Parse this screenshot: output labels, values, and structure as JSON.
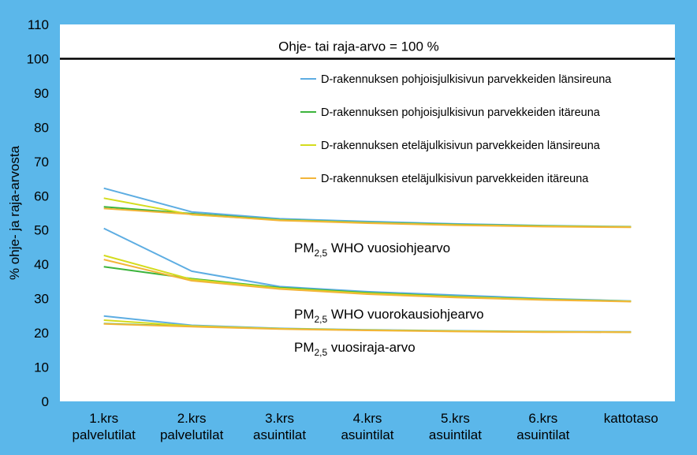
{
  "chart_data": {
    "type": "line",
    "ylabel": "% ohje- ja raja-arvosta",
    "ylim": [
      0,
      110
    ],
    "yticks": [
      0,
      10,
      20,
      30,
      40,
      50,
      60,
      70,
      80,
      90,
      100,
      110
    ],
    "grid": false,
    "categories": [
      [
        "1.krs",
        "palvelutilat"
      ],
      [
        "2.krs",
        "palvelutilat"
      ],
      [
        "3.krs",
        "asuintilat"
      ],
      [
        "4.krs",
        "asuintilat"
      ],
      [
        "5.krs",
        "asuintilat"
      ],
      [
        "6.krs",
        "asuintilat"
      ],
      [
        "kattotaso"
      ]
    ],
    "reference_line": {
      "value": 100,
      "label": "Ohje- tai raja-arvo = 100 %",
      "color": "#000000"
    },
    "legend_position": "top-right",
    "legend": [
      {
        "label": "D-rakennuksen pohjoisjulkisivun parvekkeiden länsireuna",
        "color": "#5DADE2"
      },
      {
        "label": "D-rakennuksen pohjoisjulkisivun parvekkeiden itäreuna",
        "color": "#3CB43C"
      },
      {
        "label": "D-rakennuksen eteläjulkisivun parvekkeiden länsireuna",
        "color": "#D4DC1E"
      },
      {
        "label": "D-rakennuksen eteläjulkisivun parvekkeiden itäreuna",
        "color": "#F2B53A"
      }
    ],
    "groups": [
      {
        "annotation": {
          "main": "PM",
          "sub": "2,5",
          "rest": " WHO vuosiohjearvo"
        },
        "series": [
          {
            "color": "#5DADE2",
            "values": [
              62.2,
              55.3,
              53.3,
              52.5,
              51.8,
              51.3,
              51.0
            ]
          },
          {
            "color": "#3CB43C",
            "values": [
              56.8,
              54.8,
              53.0,
              52.2,
              51.6,
              51.2,
              50.9
            ]
          },
          {
            "color": "#D4DC1E",
            "values": [
              59.3,
              54.5,
              52.9,
              52.1,
              51.5,
              51.1,
              50.9
            ]
          },
          {
            "color": "#F2B53A",
            "values": [
              56.3,
              54.6,
              52.8,
              52.0,
              51.4,
              51.0,
              50.8
            ]
          }
        ]
      },
      {
        "annotation": {
          "main": "PM",
          "sub": "2,5",
          "rest": " WHO vuorokausiohjearvo"
        },
        "series": [
          {
            "color": "#5DADE2",
            "values": [
              50.5,
              38.0,
              33.5,
              32.0,
              31.0,
              30.0,
              29.3
            ]
          },
          {
            "color": "#3CB43C",
            "values": [
              39.3,
              35.8,
              33.2,
              31.7,
              30.6,
              29.8,
              29.2
            ]
          },
          {
            "color": "#D4DC1E",
            "values": [
              42.6,
              35.6,
              33.0,
              31.5,
              30.5,
              29.7,
              29.2
            ]
          },
          {
            "color": "#F2B53A",
            "values": [
              41.4,
              35.2,
              32.8,
              31.3,
              30.3,
              29.6,
              29.1
            ]
          }
        ]
      },
      {
        "annotation": {
          "main": "PM",
          "sub": "2,5",
          "rest": " vuosiraja-arvo"
        },
        "series": [
          {
            "color": "#5DADE2",
            "values": [
              24.9,
              22.2,
              21.3,
              20.9,
              20.6,
              20.4,
              20.3
            ]
          },
          {
            "color": "#3CB43C",
            "values": [
              22.7,
              21.9,
              21.2,
              20.8,
              20.5,
              20.3,
              20.2
            ]
          },
          {
            "color": "#D4DC1E",
            "values": [
              23.7,
              22.0,
              21.2,
              20.8,
              20.5,
              20.3,
              20.2
            ]
          },
          {
            "color": "#F2B53A",
            "values": [
              22.6,
              21.8,
              21.1,
              20.7,
              20.4,
              20.2,
              20.2
            ]
          }
        ]
      }
    ]
  }
}
